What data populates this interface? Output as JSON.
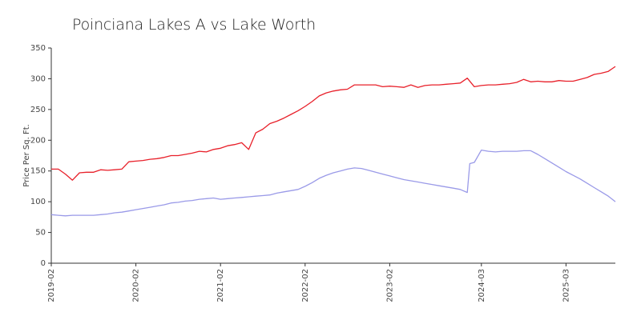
{
  "chart_data": {
    "type": "line",
    "title": "Poinciana Lakes A vs Lake Worth",
    "xlabel": "",
    "ylabel": "Price Per Sq. Ft.",
    "ylim": [
      0,
      350
    ],
    "yticks": [
      0,
      50,
      100,
      150,
      200,
      250,
      300,
      350
    ],
    "xticks": [
      "2019-02",
      "2020-02",
      "2021-02",
      "2022-02",
      "2023-02",
      "2024-03",
      "2025-03"
    ],
    "grid": false,
    "series": [
      {
        "color": "#e8202a",
        "points": [
          [
            "2019-02",
            153
          ],
          [
            "2019-03",
            153
          ],
          [
            "2019-04",
            145
          ],
          [
            "2019-05",
            135
          ],
          [
            "2019-06",
            147
          ],
          [
            "2019-07",
            148
          ],
          [
            "2019-08",
            148
          ],
          [
            "2019-09",
            152
          ],
          [
            "2019-10",
            151
          ],
          [
            "2019-11",
            152
          ],
          [
            "2019-12",
            153
          ],
          [
            "2020-01",
            165
          ],
          [
            "2020-02",
            166
          ],
          [
            "2020-03",
            167
          ],
          [
            "2020-04",
            169
          ],
          [
            "2020-05",
            170
          ],
          [
            "2020-06",
            172
          ],
          [
            "2020-07",
            175
          ],
          [
            "2020-08",
            175
          ],
          [
            "2020-09",
            177
          ],
          [
            "2020-10",
            179
          ],
          [
            "2020-11",
            182
          ],
          [
            "2020-12",
            181
          ],
          [
            "2021-01",
            185
          ],
          [
            "2021-02",
            187
          ],
          [
            "2021-03",
            191
          ],
          [
            "2021-04",
            193
          ],
          [
            "2021-05",
            196
          ],
          [
            "2021-06",
            185
          ],
          [
            "2021-07",
            212
          ],
          [
            "2021-08",
            218
          ],
          [
            "2021-09",
            227
          ],
          [
            "2021-10",
            231
          ],
          [
            "2021-11",
            236
          ],
          [
            "2021-12",
            242
          ],
          [
            "2022-01",
            248
          ],
          [
            "2022-02",
            255
          ],
          [
            "2022-03",
            263
          ],
          [
            "2022-04",
            272
          ],
          [
            "2022-05",
            277
          ],
          [
            "2022-06",
            280
          ],
          [
            "2022-07",
            282
          ],
          [
            "2022-08",
            283
          ],
          [
            "2022-09",
            290
          ],
          [
            "2022-10",
            290
          ],
          [
            "2022-11",
            290
          ],
          [
            "2022-12",
            290
          ],
          [
            "2023-01",
            287
          ],
          [
            "2023-02",
            288
          ],
          [
            "2023-03",
            287
          ],
          [
            "2023-04",
            286
          ],
          [
            "2023-05",
            290
          ],
          [
            "2023-06",
            286
          ],
          [
            "2023-07",
            289
          ],
          [
            "2023-08",
            290
          ],
          [
            "2023-09",
            290
          ],
          [
            "2023-10",
            291
          ],
          [
            "2023-11",
            292
          ],
          [
            "2023-12",
            293
          ],
          [
            "2024-01",
            301
          ],
          [
            "2024-02",
            287
          ],
          [
            "2024-03",
            289
          ],
          [
            "2024-04",
            290
          ],
          [
            "2024-05",
            290
          ],
          [
            "2024-06",
            291
          ],
          [
            "2024-07",
            292
          ],
          [
            "2024-08",
            294
          ],
          [
            "2024-09",
            299
          ],
          [
            "2024-10",
            295
          ],
          [
            "2024-11",
            296
          ],
          [
            "2024-12",
            295
          ],
          [
            "2025-01",
            295
          ],
          [
            "2025-02",
            297
          ],
          [
            "2025-03",
            296
          ],
          [
            "2025-04",
            296
          ],
          [
            "2025-05",
            299
          ],
          [
            "2025-06",
            302
          ],
          [
            "2025-07",
            307
          ],
          [
            "2025-08",
            309
          ],
          [
            "2025-09",
            312
          ],
          [
            "2025-10",
            320
          ]
        ]
      },
      {
        "color": "#9a9ae8",
        "points": [
          [
            "2019-02",
            79
          ],
          [
            "2019-03",
            78
          ],
          [
            "2019-04",
            77
          ],
          [
            "2019-05",
            78
          ],
          [
            "2019-06",
            78
          ],
          [
            "2019-07",
            78
          ],
          [
            "2019-08",
            78
          ],
          [
            "2019-09",
            79
          ],
          [
            "2019-10",
            80
          ],
          [
            "2019-11",
            82
          ],
          [
            "2019-12",
            83
          ],
          [
            "2020-01",
            85
          ],
          [
            "2020-02",
            87
          ],
          [
            "2020-03",
            89
          ],
          [
            "2020-04",
            91
          ],
          [
            "2020-05",
            93
          ],
          [
            "2020-06",
            95
          ],
          [
            "2020-07",
            98
          ],
          [
            "2020-08",
            99
          ],
          [
            "2020-09",
            101
          ],
          [
            "2020-10",
            102
          ],
          [
            "2020-11",
            104
          ],
          [
            "2020-12",
            105
          ],
          [
            "2021-01",
            106
          ],
          [
            "2021-02",
            104
          ],
          [
            "2021-03",
            105
          ],
          [
            "2021-04",
            106
          ],
          [
            "2021-05",
            107
          ],
          [
            "2021-06",
            108
          ],
          [
            "2021-07",
            109
          ],
          [
            "2021-08",
            110
          ],
          [
            "2021-09",
            111
          ],
          [
            "2021-10",
            114
          ],
          [
            "2021-11",
            116
          ],
          [
            "2021-12",
            118
          ],
          [
            "2022-01",
            120
          ],
          [
            "2022-02",
            125
          ],
          [
            "2022-03",
            131
          ],
          [
            "2022-04",
            138
          ],
          [
            "2022-05",
            143
          ],
          [
            "2022-06",
            147
          ],
          [
            "2022-07",
            150
          ],
          [
            "2022-08",
            153
          ],
          [
            "2022-09",
            155
          ],
          [
            "2022-10",
            154
          ],
          [
            "2022-11",
            151
          ],
          [
            "2022-12",
            148
          ],
          [
            "2023-01",
            145
          ],
          [
            "2023-02",
            142
          ],
          [
            "2023-03",
            139
          ],
          [
            "2023-04",
            136
          ],
          [
            "2023-05",
            134
          ],
          [
            "2023-06",
            132
          ],
          [
            "2023-07",
            130
          ],
          [
            "2023-08",
            128
          ],
          [
            "2023-09",
            126
          ],
          [
            "2023-10",
            124
          ],
          [
            "2023-11",
            122
          ],
          [
            "2023-12",
            120
          ],
          [
            "2024-01",
            115
          ],
          [
            "2024-01",
            162
          ],
          [
            "2024-02",
            164
          ],
          [
            "2024-03",
            184
          ],
          [
            "2024-04",
            182
          ],
          [
            "2024-05",
            181
          ],
          [
            "2024-06",
            182
          ],
          [
            "2024-07",
            182
          ],
          [
            "2024-08",
            182
          ],
          [
            "2024-09",
            183
          ],
          [
            "2024-10",
            183
          ],
          [
            "2024-11",
            177
          ],
          [
            "2024-12",
            170
          ],
          [
            "2025-01",
            163
          ],
          [
            "2025-02",
            156
          ],
          [
            "2025-03",
            149
          ],
          [
            "2025-04",
            143
          ],
          [
            "2025-05",
            137
          ],
          [
            "2025-06",
            130
          ],
          [
            "2025-07",
            123
          ],
          [
            "2025-08",
            116
          ],
          [
            "2025-09",
            109
          ],
          [
            "2025-10",
            100
          ]
        ]
      }
    ]
  }
}
